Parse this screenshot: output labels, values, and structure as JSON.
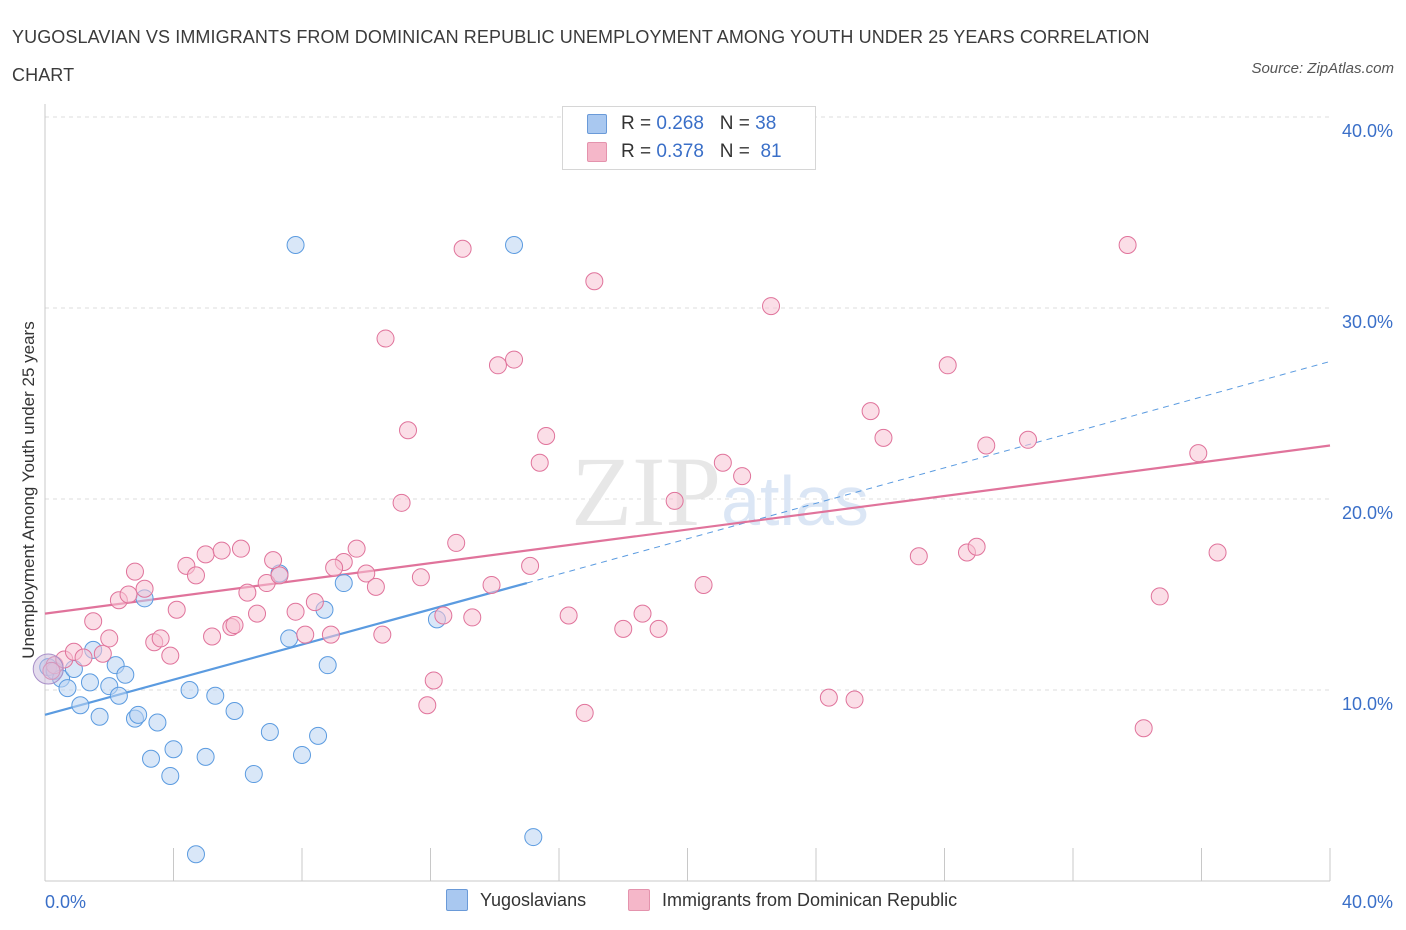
{
  "title": "YUGOSLAVIAN VS IMMIGRANTS FROM DOMINICAN REPUBLIC UNEMPLOYMENT AMONG YOUTH UNDER 25 YEARS CORRELATION CHART",
  "source": "Source: ZipAtlas.com",
  "watermark": "ZIPatlas",
  "legend": {
    "r_label": "R =",
    "n_label": "N =",
    "rows": [
      {
        "series": "Yugoslavians",
        "r": "0.268",
        "n": "38",
        "color": "#a9c8f0"
      },
      {
        "series": "Immigrants from Dominican Republic",
        "r": "0.378",
        "n": "81",
        "color": "#f5b7c9"
      }
    ]
  },
  "chart_data": {
    "type": "scatter",
    "title": "YUGOSLAVIAN VS IMMIGRANTS FROM DOMINICAN REPUBLIC UNEMPLOYMENT AMONG YOUTH UNDER 25 YEARS CORRELATION CHART",
    "xlabel": "",
    "ylabel": "Unemployment Among Youth under 25 years",
    "xlim": [
      0,
      40
    ],
    "ylim": [
      0,
      40
    ],
    "x_tick_labels": [
      "0.0%",
      "40.0%"
    ],
    "y_tick_labels": [
      "10.0%",
      "20.0%",
      "30.0%",
      "40.0%"
    ],
    "y_ticks": [
      10,
      20,
      30,
      40
    ],
    "grid": true,
    "legend_position": "bottom-center",
    "series": [
      {
        "name": "Yugoslavians",
        "color": "#5b9be0",
        "fill": "#b9d3f3",
        "trend": {
          "x0": 0,
          "y0": 8.7,
          "x1": 15,
          "y1": 15.6,
          "dashed_to_x": 40,
          "dashed_to_y": 27.2
        },
        "points": [
          [
            0.1,
            11.2
          ],
          [
            0.3,
            11.0
          ],
          [
            0.5,
            10.6
          ],
          [
            0.7,
            10.1
          ],
          [
            0.9,
            11.1
          ],
          [
            1.1,
            9.2
          ],
          [
            1.4,
            10.4
          ],
          [
            1.7,
            8.6
          ],
          [
            1.5,
            12.1
          ],
          [
            2.0,
            10.2
          ],
          [
            2.2,
            11.3
          ],
          [
            2.3,
            9.7
          ],
          [
            2.5,
            10.8
          ],
          [
            2.8,
            8.5
          ],
          [
            2.9,
            8.7
          ],
          [
            3.1,
            14.8
          ],
          [
            3.3,
            6.4
          ],
          [
            3.5,
            8.3
          ],
          [
            3.9,
            5.5
          ],
          [
            4.0,
            6.9
          ],
          [
            4.5,
            10.0
          ],
          [
            4.7,
            1.4
          ],
          [
            5.0,
            6.5
          ],
          [
            5.3,
            9.7
          ],
          [
            5.9,
            8.9
          ],
          [
            6.5,
            5.6
          ],
          [
            7.0,
            7.8
          ],
          [
            7.3,
            16.1
          ],
          [
            7.6,
            12.7
          ],
          [
            7.8,
            33.3
          ],
          [
            8.0,
            6.6
          ],
          [
            8.5,
            7.6
          ],
          [
            8.7,
            14.2
          ],
          [
            8.8,
            11.3
          ],
          [
            9.3,
            15.6
          ],
          [
            12.2,
            13.7
          ],
          [
            14.6,
            33.3
          ],
          [
            15.2,
            2.3
          ]
        ]
      },
      {
        "name": "Immigrants from Dominican Republic",
        "color": "#e0739b",
        "fill": "#f7c2d3",
        "trend": {
          "x0": 0,
          "y0": 14.0,
          "x1": 40,
          "y1": 22.8
        },
        "points": [
          [
            0.3,
            11.3
          ],
          [
            0.6,
            11.6
          ],
          [
            0.9,
            12.0
          ],
          [
            1.2,
            11.7
          ],
          [
            1.5,
            13.6
          ],
          [
            1.8,
            11.9
          ],
          [
            2.0,
            12.7
          ],
          [
            2.3,
            14.7
          ],
          [
            2.6,
            15.0
          ],
          [
            2.8,
            16.2
          ],
          [
            3.1,
            15.3
          ],
          [
            3.4,
            12.5
          ],
          [
            3.6,
            12.7
          ],
          [
            3.9,
            11.8
          ],
          [
            4.1,
            14.2
          ],
          [
            4.4,
            16.5
          ],
          [
            4.7,
            16.0
          ],
          [
            5.0,
            17.1
          ],
          [
            5.2,
            12.8
          ],
          [
            5.5,
            17.3
          ],
          [
            5.8,
            13.3
          ],
          [
            6.1,
            17.4
          ],
          [
            6.3,
            15.1
          ],
          [
            6.6,
            14.0
          ],
          [
            6.9,
            15.6
          ],
          [
            7.1,
            16.8
          ],
          [
            7.3,
            16.0
          ],
          [
            7.8,
            14.1
          ],
          [
            8.1,
            12.9
          ],
          [
            8.4,
            14.6
          ],
          [
            8.9,
            12.9
          ],
          [
            9.3,
            16.7
          ],
          [
            9.7,
            17.4
          ],
          [
            10.0,
            16.1
          ],
          [
            10.3,
            15.4
          ],
          [
            10.5,
            12.9
          ],
          [
            10.6,
            28.4
          ],
          [
            11.1,
            19.8
          ],
          [
            11.3,
            23.6
          ],
          [
            11.7,
            15.9
          ],
          [
            11.9,
            9.2
          ],
          [
            12.1,
            10.5
          ],
          [
            12.4,
            13.9
          ],
          [
            12.8,
            17.7
          ],
          [
            13.0,
            33.1
          ],
          [
            13.3,
            13.8
          ],
          [
            13.9,
            15.5
          ],
          [
            14.1,
            27.0
          ],
          [
            14.6,
            27.3
          ],
          [
            15.1,
            16.5
          ],
          [
            15.4,
            21.9
          ],
          [
            15.6,
            23.3
          ],
          [
            16.3,
            13.9
          ],
          [
            16.8,
            8.8
          ],
          [
            17.1,
            31.4
          ],
          [
            18.0,
            13.2
          ],
          [
            18.6,
            14.0
          ],
          [
            19.1,
            13.2
          ],
          [
            19.6,
            19.9
          ],
          [
            20.5,
            15.5
          ],
          [
            21.1,
            21.9
          ],
          [
            21.7,
            21.2
          ],
          [
            22.6,
            30.1
          ],
          [
            24.4,
            9.6
          ],
          [
            25.2,
            9.5
          ],
          [
            25.7,
            24.6
          ],
          [
            26.1,
            23.2
          ],
          [
            27.2,
            17.0
          ],
          [
            28.1,
            27.0
          ],
          [
            28.7,
            17.2
          ],
          [
            29.0,
            17.5
          ],
          [
            29.3,
            22.8
          ],
          [
            30.6,
            23.1
          ],
          [
            33.7,
            33.3
          ],
          [
            34.2,
            8.0
          ],
          [
            34.7,
            14.9
          ],
          [
            35.9,
            22.4
          ],
          [
            36.5,
            17.2
          ],
          [
            0.2,
            11.0
          ],
          [
            5.9,
            13.4
          ],
          [
            9.0,
            16.4
          ]
        ]
      }
    ]
  }
}
